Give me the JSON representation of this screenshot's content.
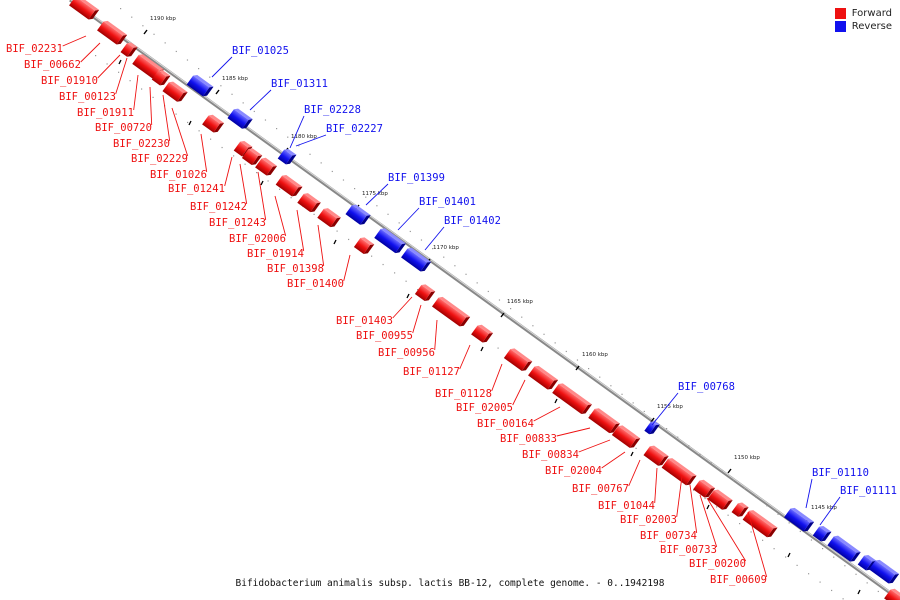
{
  "caption": "Bifidobacterium animalis subsp. lactis BB-12, complete genome. - 0..1942198",
  "legend": {
    "forward_label": "Forward",
    "reverse_label": "Reverse"
  },
  "colors": {
    "forward": "#ee1111",
    "reverse": "#1111ee",
    "axis": "#888888"
  },
  "kbp_labels": [
    "1190 kbp",
    "1185 kbp",
    "1180 kbp",
    "1175 kbp",
    "1170 kbp",
    "1165 kbp",
    "1160 kbp",
    "1155 kbp",
    "1150 kbp",
    "1145 kbp"
  ],
  "forward_genes": [
    "BIF_02231",
    "BIF_00662",
    "BIF_01910",
    "BIF_00123",
    "BIF_01911",
    "BIF_00720",
    "BIF_02230",
    "BIF_02229",
    "BIF_01026",
    "BIF_01241",
    "BIF_01242",
    "BIF_01243",
    "BIF_02006",
    "BIF_01914",
    "BIF_01398",
    "BIF_01400",
    "BIF_01403",
    "BIF_00955",
    "BIF_00956",
    "BIF_01127",
    "BIF_01128",
    "BIF_02005",
    "BIF_00164",
    "BIF_00833",
    "BIF_00834",
    "BIF_02004",
    "BIF_00767",
    "BIF_01044",
    "BIF_02003",
    "BIF_00734",
    "BIF_00733",
    "BIF_00200",
    "BIF_00609"
  ],
  "reverse_genes": [
    "BIF_01025",
    "BIF_01311",
    "BIF_02228",
    "BIF_02227",
    "BIF_01399",
    "BIF_01401",
    "BIF_01402",
    "BIF_00768",
    "BIF_01110",
    "BIF_01111"
  ]
}
